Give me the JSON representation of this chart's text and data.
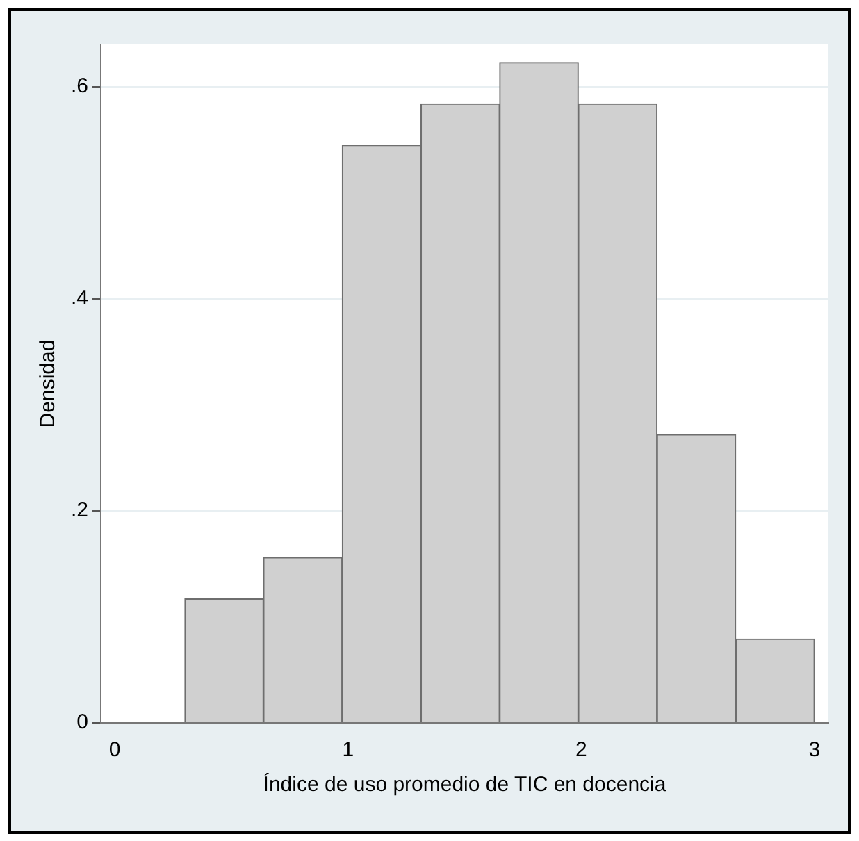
{
  "chart_data": {
    "type": "histogram",
    "xlabel": "Índice de uso promedio de TIC en docencia",
    "ylabel": "Densidad",
    "bins": [
      0.3,
      0.638,
      0.975,
      1.313,
      1.65,
      1.988,
      2.325,
      2.663,
      3.0
    ],
    "values": [
      0.117,
      0.156,
      0.545,
      0.584,
      0.623,
      0.584,
      0.272,
      0.079
    ],
    "color": "#d0d0d0",
    "xlim": [
      -0.06,
      3.06
    ],
    "xticks": [
      0,
      1,
      2,
      3
    ],
    "ylim": [
      0,
      0.64
    ],
    "yticks": [
      {
        "value": 0,
        "label": "0"
      },
      {
        "value": 0.2,
        "label": ".2"
      },
      {
        "value": 0.4,
        "label": ".4"
      },
      {
        "value": 0.6,
        "label": ".6"
      }
    ],
    "grid": "y",
    "legend": false
  }
}
